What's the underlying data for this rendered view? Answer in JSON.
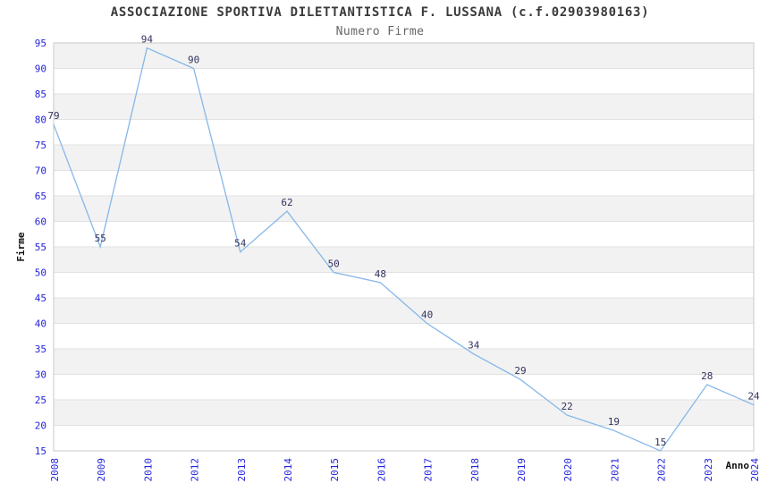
{
  "header": {
    "title": "ASSOCIAZIONE SPORTIVA DILETTANTISTICA F. LUSSANA (c.f.02903980163)",
    "subtitle": "Numero Firme"
  },
  "chart_data": {
    "type": "line",
    "title": "ASSOCIAZIONE SPORTIVA DILETTANTISTICA F. LUSSANA (c.f.02903980163)",
    "subtitle": "Numero Firme",
    "xlabel": "Anno",
    "ylabel": "Firme",
    "categories": [
      "2008",
      "2009",
      "2010",
      "2012",
      "2013",
      "2014",
      "2015",
      "2016",
      "2017",
      "2018",
      "2019",
      "2020",
      "2021",
      "2022",
      "2023",
      "2024"
    ],
    "values": [
      79,
      55,
      94,
      90,
      54,
      62,
      50,
      48,
      40,
      34,
      29,
      22,
      19,
      15,
      28,
      24
    ],
    "ylim": [
      15,
      95
    ],
    "ytick_step": 5,
    "grid": "horizontal-bands-alternating",
    "legend": "none",
    "point_markers": false,
    "point_labels_visible": true,
    "colors": {
      "line": "#86b7ea",
      "tick_label": "#2222dd",
      "point_label": "#32325f",
      "band_gray": "#f2f2f2",
      "grid_line": "#e2e2e2",
      "plot_border": "#c9c9c9",
      "title": "#3a3a3a",
      "subtitle": "#666666",
      "axis_title": "#111111",
      "background": "#ffffff"
    }
  }
}
